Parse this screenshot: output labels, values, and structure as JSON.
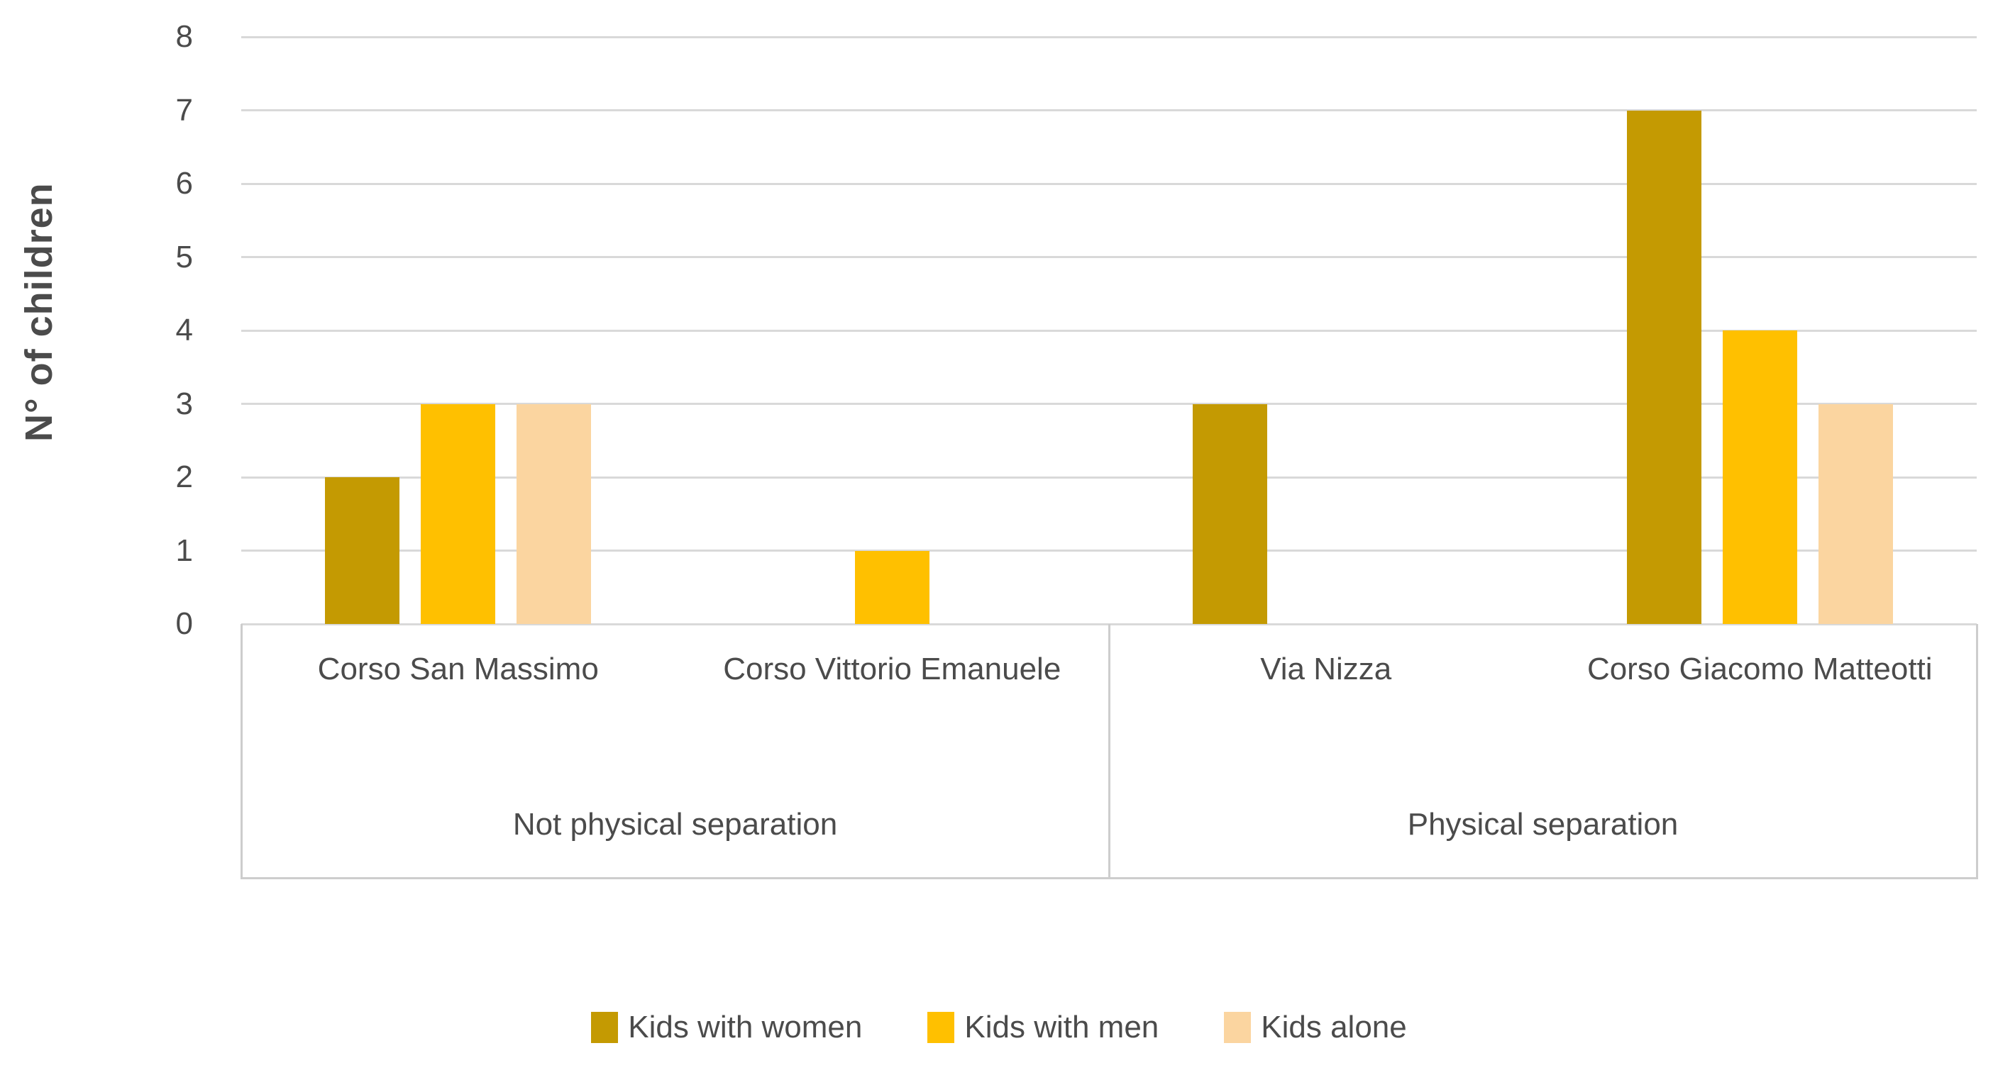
{
  "chart_data": {
    "type": "bar",
    "title": "",
    "ylabel": "N° of children",
    "xlabel": "",
    "ylim": [
      0,
      8
    ],
    "ytick_step": 1,
    "grid": true,
    "legend_position": "bottom",
    "categories": [
      "Corso San Massimo",
      "Corso Vittorio Emanuele",
      "Via Nizza",
      "Corso Giacomo Matteotti"
    ],
    "category_groups": [
      {
        "label": "Not physical separation",
        "span": 2
      },
      {
        "label": "Physical separation",
        "span": 2
      }
    ],
    "series": [
      {
        "name": "Kids with women",
        "color": "#C49A02",
        "values": [
          2,
          0,
          3,
          7
        ]
      },
      {
        "name": "Kids with men",
        "color": "#FFC000",
        "values": [
          3,
          1,
          0,
          4
        ]
      },
      {
        "name": "Kids alone",
        "color": "#FBD5A0",
        "values": [
          3,
          0,
          0,
          3
        ]
      }
    ]
  },
  "colors": {
    "axis_text": "#4b4b4b",
    "gridline": "#D9D9D9",
    "axis_border": "#CDCDCD",
    "background": "#ffffff"
  }
}
